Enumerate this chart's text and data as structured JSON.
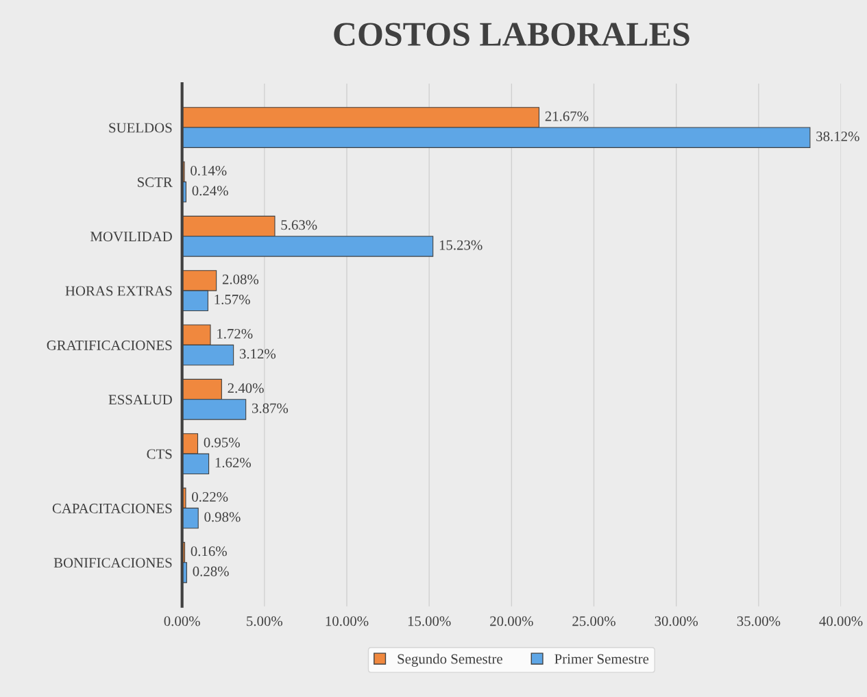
{
  "chart_data": {
    "type": "bar",
    "orientation": "horizontal",
    "title": "COSTOS LABORALES",
    "categories": [
      "SUELDOS",
      "SCTR",
      "MOVILIDAD",
      "HORAS EXTRAS",
      "GRATIFICACIONES",
      "ESSALUD",
      "CTS",
      "CAPACITACIONES",
      "BONIFICACIONES"
    ],
    "series": [
      {
        "name": "Segundo Semestre",
        "color": "#f0883e",
        "values": [
          21.67,
          0.14,
          5.63,
          2.08,
          1.72,
          2.4,
          0.95,
          0.22,
          0.16
        ],
        "value_labels": [
          "21.67%",
          "0.14%",
          "5.63%",
          "2.08%",
          "1.72%",
          "2.40%",
          "0.95%",
          "0.22%",
          "0.16%"
        ]
      },
      {
        "name": "Primer Semestre",
        "color": "#5ea6e6",
        "values": [
          38.12,
          0.24,
          15.23,
          1.57,
          3.12,
          3.87,
          1.62,
          0.98,
          0.28
        ],
        "value_labels": [
          "38.12%",
          "0.24%",
          "15.23%",
          "1.57%",
          "3.12%",
          "3.87%",
          "1.62%",
          "0.98%",
          "0.28%"
        ]
      }
    ],
    "xlim": [
      0,
      40
    ],
    "xticks": [
      {
        "value": 0,
        "label": "0.00%"
      },
      {
        "value": 5,
        "label": "5.00%"
      },
      {
        "value": 10,
        "label": "10.00%"
      },
      {
        "value": 15,
        "label": "15.00%"
      },
      {
        "value": 20,
        "label": "20.00%"
      },
      {
        "value": 25,
        "label": "25.00%"
      },
      {
        "value": 30,
        "label": "30.00%"
      },
      {
        "value": 35,
        "label": "35.00%"
      },
      {
        "value": 40,
        "label": "40.00%"
      }
    ],
    "grid": "x",
    "legend": "bottom"
  }
}
